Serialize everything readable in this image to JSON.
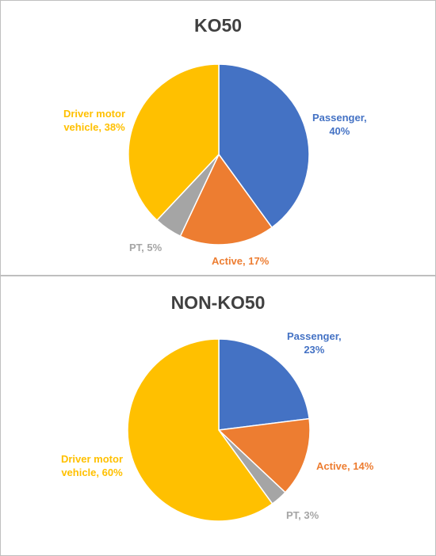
{
  "chart_data": [
    {
      "type": "pie",
      "title": "KO50",
      "slices": [
        {
          "label": "Passenger",
          "value": 40,
          "color": "#4472c4"
        },
        {
          "label": "Active",
          "value": 17,
          "color": "#ed7d31"
        },
        {
          "label": "PT",
          "value": 5,
          "color": "#a5a5a5"
        },
        {
          "label": "Driver motor vehicle",
          "value": 38,
          "color": "#ffc000"
        }
      ],
      "value_suffix": "%",
      "start_angle": "12 o'clock, clockwise"
    },
    {
      "type": "pie",
      "title": "NON-KO50",
      "slices": [
        {
          "label": "Passenger",
          "value": 23,
          "color": "#4472c4"
        },
        {
          "label": "Active",
          "value": 14,
          "color": "#ed7d31"
        },
        {
          "label": "PT",
          "value": 3,
          "color": "#a5a5a5"
        },
        {
          "label": "Driver motor vehicle",
          "value": 60,
          "color": "#ffc000"
        }
      ],
      "value_suffix": "%",
      "start_angle": "12 o'clock, clockwise"
    }
  ]
}
